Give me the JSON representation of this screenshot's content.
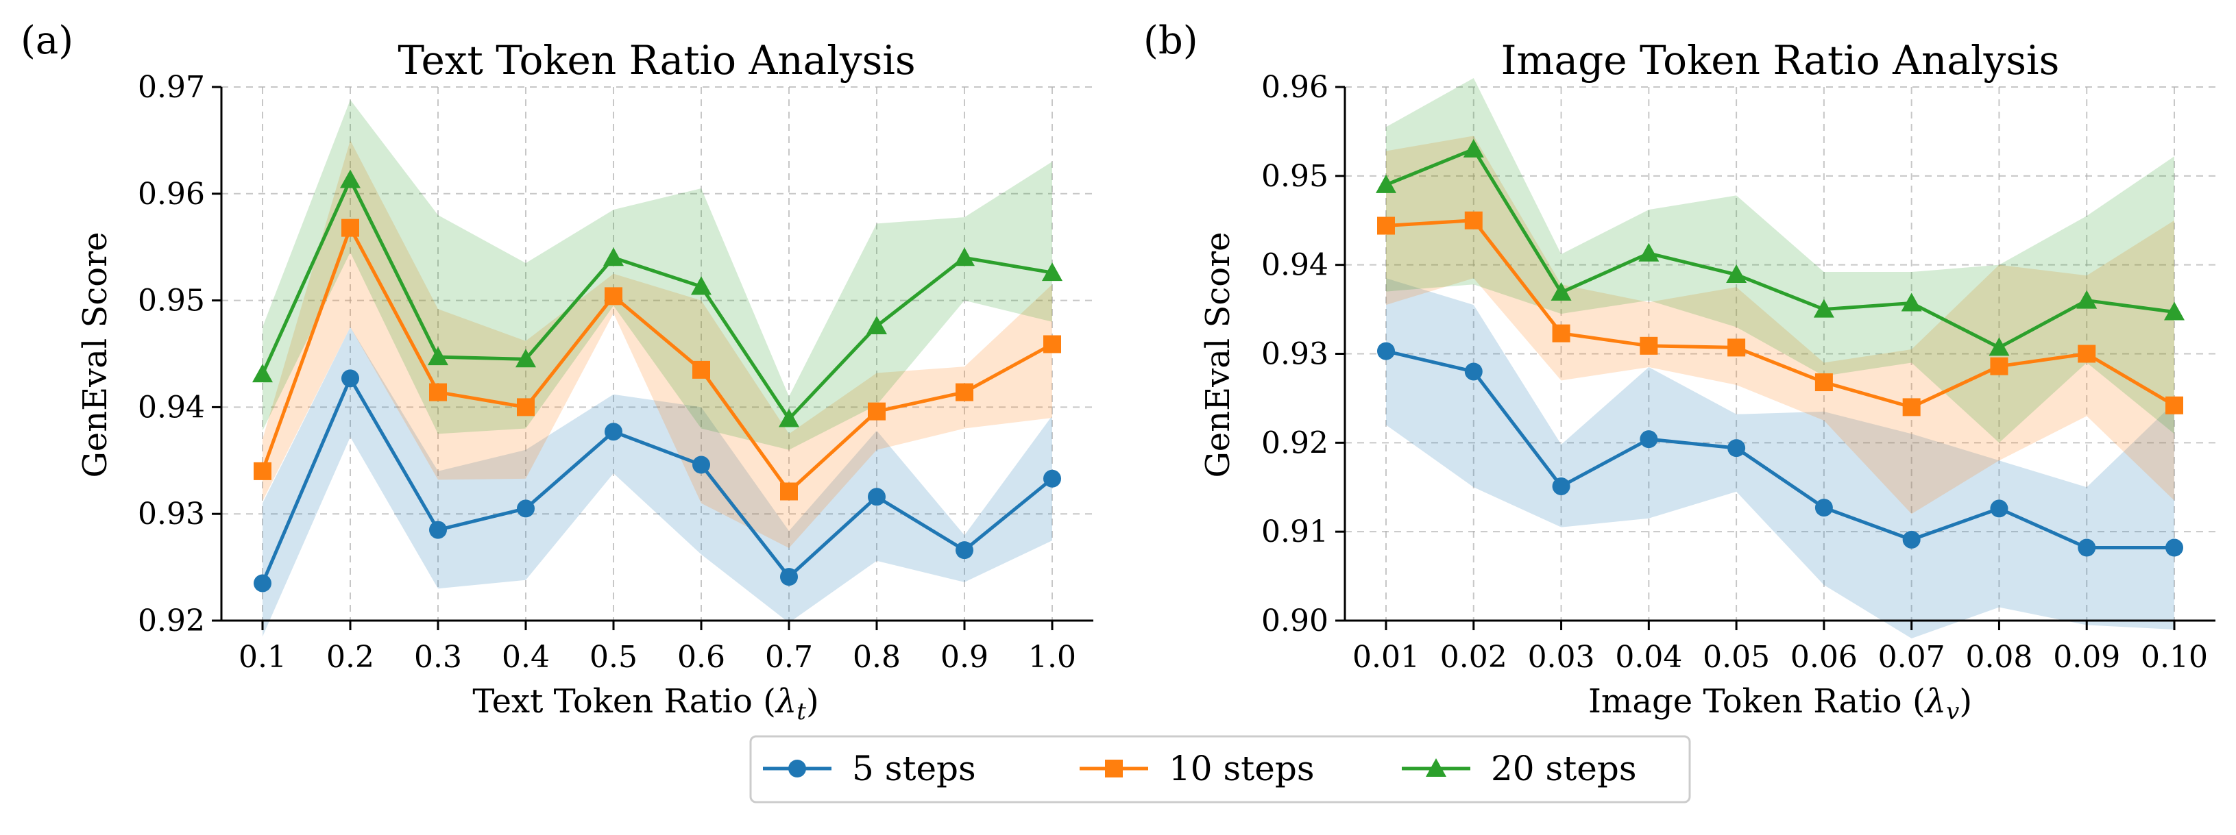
{
  "chart_data": [
    {
      "type": "line",
      "panel_label": "(a)",
      "title": "Text Token Ratio Analysis",
      "xlabel_text": "Text Token Ratio (",
      "xlabel_symbol": "λ",
      "xlabel_sub": "t",
      "xlabel_close": ")",
      "ylabel": "GenEval Score",
      "categories": [
        "0.1",
        "0.2",
        "0.3",
        "0.4",
        "0.5",
        "0.6",
        "0.7",
        "0.8",
        "0.9",
        "1.0"
      ],
      "ylim": [
        0.92,
        0.97
      ],
      "yticks": [
        0.92,
        0.93,
        0.94,
        0.95,
        0.96,
        0.97
      ],
      "ytick_labels": [
        "0.92",
        "0.93",
        "0.94",
        "0.95",
        "0.96",
        "0.97"
      ],
      "grid": true,
      "series": [
        {
          "name": "5 steps",
          "color": "#1f77b4",
          "marker": "circle",
          "values": [
            0.9235,
            0.9427,
            0.9285,
            0.9305,
            0.9377,
            0.9346,
            0.9241,
            0.9316,
            0.9266,
            0.9333
          ],
          "lower": [
            0.9185,
            0.9372,
            0.923,
            0.9238,
            0.9338,
            0.9262,
            0.9198,
            0.9256,
            0.9236,
            0.9275
          ],
          "upper": [
            0.931,
            0.9475,
            0.934,
            0.936,
            0.9412,
            0.94,
            0.9284,
            0.9378,
            0.928,
            0.9392
          ]
        },
        {
          "name": "10 steps",
          "color": "#ff7f0e",
          "marker": "square",
          "values": [
            0.934,
            0.9568,
            0.9414,
            0.94,
            0.9504,
            0.9435,
            0.9321,
            0.9396,
            0.9414,
            0.9459
          ],
          "lower": [
            0.9312,
            0.9475,
            0.9332,
            0.9333,
            0.9488,
            0.931,
            0.9268,
            0.936,
            0.938,
            0.939
          ],
          "upper": [
            0.937,
            0.965,
            0.9492,
            0.9462,
            0.9525,
            0.95,
            0.9375,
            0.9432,
            0.9438,
            0.9515
          ]
        },
        {
          "name": "20 steps",
          "color": "#2ca02c",
          "marker": "triangle",
          "values": [
            0.9431,
            0.9613,
            0.9447,
            0.9445,
            0.954,
            0.9513,
            0.9389,
            0.9476,
            0.954,
            0.9526
          ],
          "lower": [
            0.9378,
            0.9545,
            0.9375,
            0.938,
            0.9495,
            0.938,
            0.936,
            0.9402,
            0.95,
            0.948
          ],
          "upper": [
            0.9475,
            0.9688,
            0.958,
            0.9535,
            0.9585,
            0.9605,
            0.941,
            0.9572,
            0.9578,
            0.963
          ]
        }
      ]
    },
    {
      "type": "line",
      "panel_label": "(b)",
      "title": "Image Token Ratio Analysis",
      "xlabel_text": "Image Token Ratio (",
      "xlabel_symbol": "λ",
      "xlabel_sub": "v",
      "xlabel_close": ")",
      "ylabel": "GenEval Score",
      "categories": [
        "0.01",
        "0.02",
        "0.03",
        "0.04",
        "0.05",
        "0.06",
        "0.07",
        "0.08",
        "0.09",
        "0.10"
      ],
      "ylim": [
        0.9,
        0.96
      ],
      "yticks": [
        0.9,
        0.91,
        0.92,
        0.93,
        0.94,
        0.95,
        0.96
      ],
      "ytick_labels": [
        "0.90",
        "0.91",
        "0.92",
        "0.93",
        "0.94",
        "0.95",
        "0.96"
      ],
      "grid": true,
      "series": [
        {
          "name": "5 steps",
          "color": "#1f77b4",
          "marker": "circle",
          "values": [
            0.9303,
            0.928,
            0.9151,
            0.9204,
            0.9194,
            0.9127,
            0.9091,
            0.9126,
            0.9082,
            0.9082
          ],
          "lower": [
            0.922,
            0.915,
            0.9105,
            0.9115,
            0.9145,
            0.904,
            0.898,
            0.9015,
            0.8995,
            0.899
          ],
          "upper": [
            0.9385,
            0.9355,
            0.9198,
            0.9285,
            0.9232,
            0.9235,
            0.921,
            0.918,
            0.915,
            0.9245
          ]
        },
        {
          "name": "10 steps",
          "color": "#ff7f0e",
          "marker": "square",
          "values": [
            0.9444,
            0.945,
            0.9323,
            0.9309,
            0.9307,
            0.9268,
            0.924,
            0.9286,
            0.93,
            0.9242
          ],
          "lower": [
            0.9355,
            0.9385,
            0.927,
            0.9285,
            0.9265,
            0.9225,
            0.912,
            0.918,
            0.923,
            0.9135
          ],
          "upper": [
            0.9528,
            0.9545,
            0.9378,
            0.9358,
            0.9375,
            0.929,
            0.9305,
            0.94,
            0.9388,
            0.945
          ]
        },
        {
          "name": "20 steps",
          "color": "#2ca02c",
          "marker": "triangle",
          "values": [
            0.949,
            0.953,
            0.9369,
            0.9413,
            0.9389,
            0.935,
            0.9357,
            0.9307,
            0.936,
            0.9347
          ],
          "lower": [
            0.937,
            0.9378,
            0.9345,
            0.936,
            0.933,
            0.9275,
            0.929,
            0.92,
            0.929,
            0.921
          ],
          "upper": [
            0.9555,
            0.961,
            0.9412,
            0.9462,
            0.9478,
            0.9392,
            0.9392,
            0.94,
            0.9455,
            0.9522
          ]
        }
      ]
    }
  ],
  "legend": [
    {
      "label": "5 steps",
      "color": "#1f77b4",
      "marker": "circle"
    },
    {
      "label": "10 steps",
      "color": "#ff7f0e",
      "marker": "square"
    },
    {
      "label": "20 steps",
      "color": "#2ca02c",
      "marker": "triangle"
    }
  ]
}
